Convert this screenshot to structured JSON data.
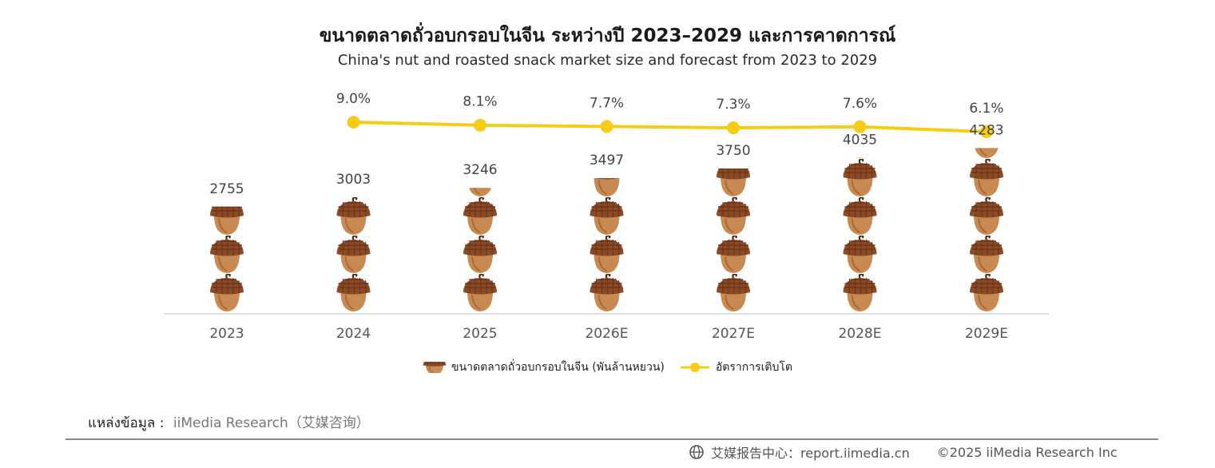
{
  "title": "ขนาดตลาดถั่วอบกรอบในจีน ระหว่างปี 2023–2029 และการคาดการณ์",
  "subtitle": "China's nut and roasted snack market size and forecast from 2023 to 2029",
  "chart_data": {
    "type": "bar",
    "categories": [
      "2023",
      "2024",
      "2025",
      "2026E",
      "2027E",
      "2028E",
      "2029E"
    ],
    "series": [
      {
        "name": "ขนาดตลาดถั่วอบกรอบในจีน (พันล้านหยวน)",
        "kind": "pictogram-bar",
        "icon": "acorn-icon",
        "values": [
          2755,
          3003,
          3246,
          3497,
          3750,
          4035,
          4283
        ],
        "labels": [
          "2755",
          "3003",
          "3246",
          "3497",
          "3750",
          "4035",
          "4283"
        ]
      },
      {
        "name": "อัตราการเติบโต",
        "kind": "line",
        "color": "#f5cc16",
        "values": [
          null,
          9.0,
          8.1,
          7.7,
          7.3,
          7.6,
          6.1
        ],
        "labels": [
          "",
          "9.0%",
          "8.1%",
          "7.7%",
          "7.3%",
          "7.6%",
          "6.1%"
        ]
      }
    ],
    "ylim": [
      0,
      4500
    ],
    "y2lim": [
      0,
      10
    ]
  },
  "legend": {
    "market_label": "ขนาดตลาดถั่วอบกรอบในจีน (พันล้านหยวน)",
    "growth_label": "อัตราการเติบโต"
  },
  "source": {
    "label": "แหล่งข้อมูล :",
    "value": "iiMedia Research（艾媒咨询）"
  },
  "footer": {
    "center": "艾媒报告中心：report.iimedia.cn",
    "copyright": "©2025  iiMedia Research Inc"
  },
  "colors": {
    "acorn_cap": "#8a4a26",
    "acorn_body": "#c98a52",
    "line": "#f5cc16",
    "axis": "#d6d6d6"
  }
}
